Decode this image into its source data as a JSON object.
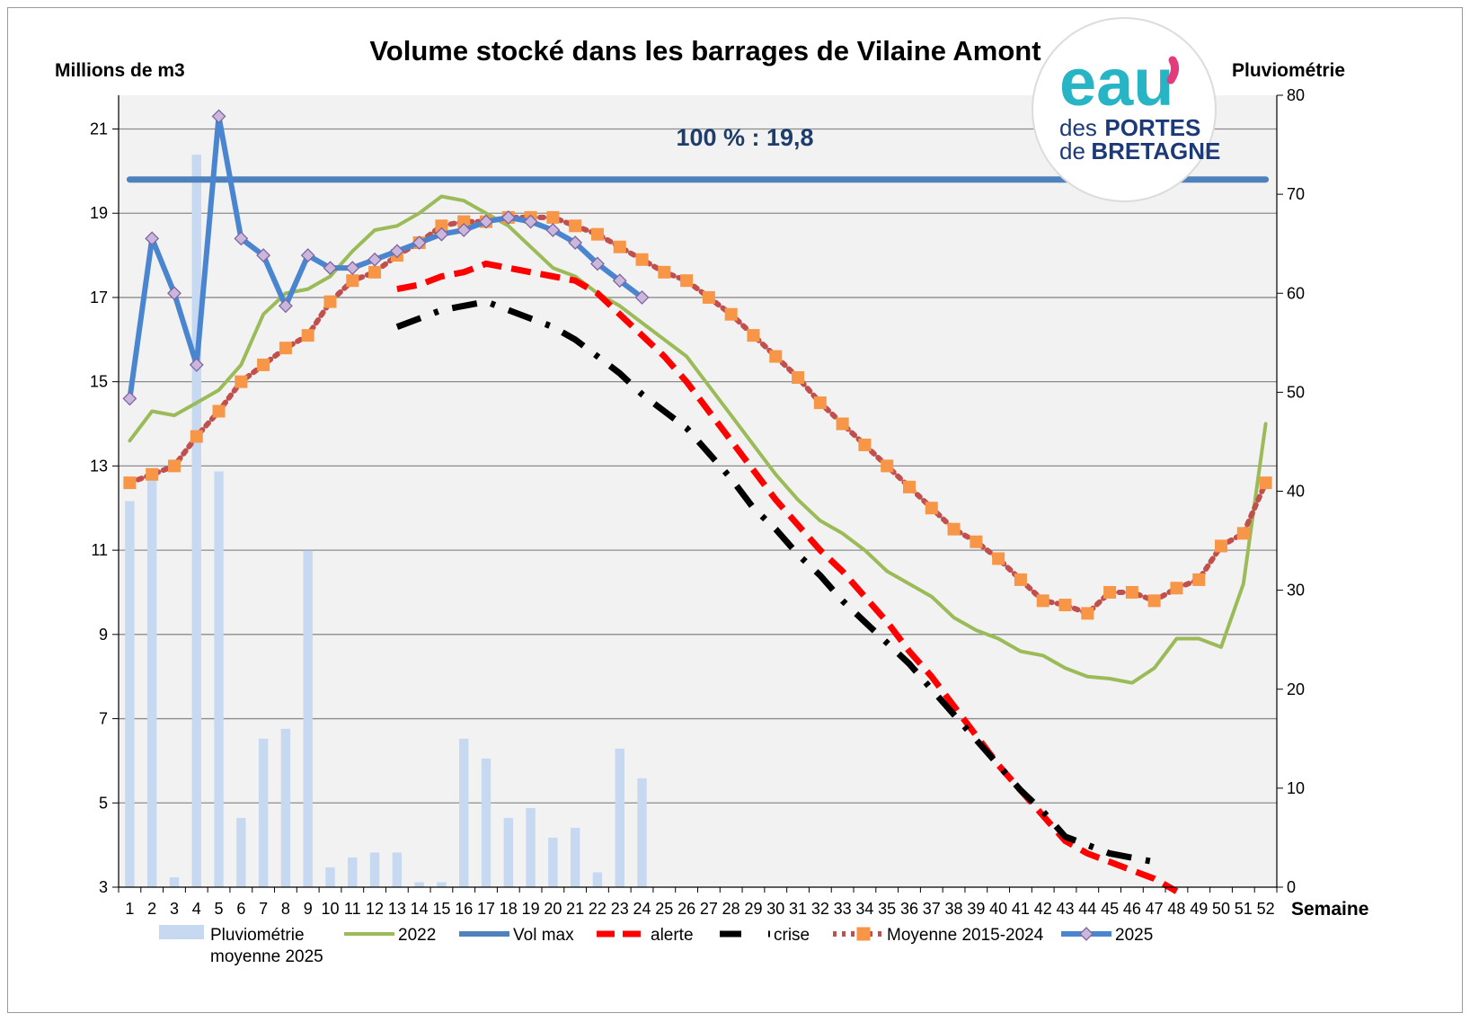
{
  "chart_data": {
    "type": "line",
    "title": "Volume stocké dans les barrages de Vilaine Amont",
    "ylabel": "Millions de m3",
    "y2label": "Pluviométrie",
    "xlabel": "Semaine",
    "ylim": [
      3,
      21.8
    ],
    "y2lim": [
      0,
      80
    ],
    "yticks": [
      3,
      5,
      7,
      9,
      11,
      13,
      15,
      17,
      19,
      21
    ],
    "y2ticks": [
      0,
      10,
      20,
      30,
      40,
      50,
      60,
      70,
      80
    ],
    "x": [
      1,
      2,
      3,
      4,
      5,
      6,
      7,
      8,
      9,
      10,
      11,
      12,
      13,
      14,
      15,
      16,
      17,
      18,
      19,
      20,
      21,
      22,
      23,
      24,
      25,
      26,
      27,
      28,
      29,
      30,
      31,
      32,
      33,
      34,
      35,
      36,
      37,
      38,
      39,
      40,
      41,
      42,
      43,
      44,
      45,
      46,
      47,
      48,
      49,
      50,
      51,
      52
    ],
    "annotation": "100 % : 19,8",
    "grid": true,
    "legend_position": "bottom",
    "series": [
      {
        "name": "Pluviométrie moyenne 2025",
        "kind": "bar",
        "axis": "right",
        "color": "#c6d9f1",
        "values": [
          39,
          42,
          1,
          74,
          42,
          7,
          15,
          16,
          34,
          2,
          3,
          3.5,
          3.5,
          0.5,
          0.5,
          15,
          13,
          7,
          8,
          5,
          6,
          1.5,
          14,
          11,
          null,
          null,
          null,
          null,
          null,
          null,
          null,
          null,
          null,
          null,
          null,
          null,
          null,
          null,
          null,
          null,
          null,
          null,
          null,
          null,
          null,
          null,
          null,
          null,
          null,
          null,
          null,
          null
        ]
      },
      {
        "name": "2022",
        "kind": "line",
        "color": "#9bbb59",
        "values": [
          13.6,
          14.3,
          14.2,
          14.5,
          14.8,
          15.4,
          16.6,
          17.1,
          17.2,
          17.5,
          18.1,
          18.6,
          18.7,
          19.0,
          19.4,
          19.3,
          19.0,
          18.7,
          18.2,
          17.7,
          17.5,
          17.1,
          16.8,
          16.4,
          16.0,
          15.6,
          14.9,
          14.2,
          13.5,
          12.8,
          12.2,
          11.7,
          11.4,
          11.0,
          10.5,
          10.2,
          9.9,
          9.4,
          9.1,
          8.9,
          8.6,
          8.5,
          8.2,
          8.0,
          7.95,
          7.85,
          8.2,
          8.9,
          8.9,
          8.7,
          10.2,
          14.0
        ]
      },
      {
        "name": "Vol max",
        "kind": "line",
        "color": "#4f81bd",
        "values": [
          19.8,
          19.8,
          19.8,
          19.8,
          19.8,
          19.8,
          19.8,
          19.8,
          19.8,
          19.8,
          19.8,
          19.8,
          19.8,
          19.8,
          19.8,
          19.8,
          19.8,
          19.8,
          19.8,
          19.8,
          19.8,
          19.8,
          19.8,
          19.8,
          19.8,
          19.8,
          19.8,
          19.8,
          19.8,
          19.8,
          19.8,
          19.8,
          19.8,
          19.8,
          19.8,
          19.8,
          19.8,
          19.8,
          19.8,
          19.8,
          19.8,
          19.8,
          19.8,
          19.8,
          19.8,
          19.8,
          19.8,
          19.8,
          19.8,
          19.8,
          19.8,
          19.8
        ]
      },
      {
        "name": "alerte",
        "kind": "dashed",
        "color": "#ff0000",
        "values": [
          null,
          null,
          null,
          null,
          null,
          null,
          null,
          null,
          null,
          null,
          null,
          null,
          17.2,
          17.3,
          17.5,
          17.6,
          17.8,
          17.7,
          17.6,
          17.5,
          17.4,
          17.1,
          16.6,
          16.1,
          15.6,
          15.0,
          14.3,
          13.6,
          12.9,
          12.2,
          11.6,
          11.0,
          10.5,
          9.9,
          9.3,
          8.6,
          8.0,
          7.3,
          6.6,
          5.9,
          5.3,
          4.7,
          4.1,
          3.8,
          3.6,
          3.4,
          3.2,
          2.9,
          null,
          null,
          null,
          null
        ]
      },
      {
        "name": "crise",
        "kind": "dashdot",
        "color": "#000000",
        "values": [
          null,
          null,
          null,
          null,
          null,
          null,
          null,
          null,
          null,
          null,
          null,
          null,
          16.3,
          16.5,
          16.7,
          16.8,
          16.9,
          16.7,
          16.5,
          16.3,
          16.0,
          15.6,
          15.2,
          14.7,
          14.3,
          13.9,
          13.3,
          12.7,
          12.0,
          11.5,
          10.9,
          10.4,
          9.8,
          9.3,
          8.8,
          8.3,
          7.7,
          7.1,
          6.5,
          5.9,
          5.3,
          4.8,
          4.2,
          4.0,
          3.8,
          3.7,
          3.6,
          null,
          null,
          null,
          null,
          null
        ]
      },
      {
        "name": "Moyenne 2015-2024",
        "kind": "line-markers",
        "color": "#c0504d",
        "marker_color": "#f79646",
        "values": [
          12.6,
          12.8,
          13.0,
          13.7,
          14.3,
          15.0,
          15.4,
          15.8,
          16.1,
          16.9,
          17.4,
          17.6,
          18.0,
          18.3,
          18.7,
          18.8,
          18.8,
          18.9,
          18.9,
          18.9,
          18.7,
          18.5,
          18.2,
          17.9,
          17.6,
          17.4,
          17.0,
          16.6,
          16.1,
          15.6,
          15.1,
          14.5,
          14.0,
          13.5,
          13.0,
          12.5,
          12.0,
          11.5,
          11.2,
          10.8,
          10.3,
          9.8,
          9.7,
          9.5,
          10.0,
          10.0,
          9.8,
          10.1,
          10.3,
          11.1,
          11.4,
          12.6
        ]
      },
      {
        "name": "2025",
        "kind": "line-markers",
        "color": "#4a86d0",
        "marker_color": "#c9b8dc",
        "values": [
          14.6,
          18.4,
          17.1,
          15.4,
          21.3,
          18.4,
          18.0,
          16.8,
          18.0,
          17.7,
          17.7,
          17.9,
          18.1,
          18.3,
          18.5,
          18.6,
          18.8,
          18.9,
          18.8,
          18.6,
          18.3,
          17.8,
          17.4,
          17.0,
          null,
          null,
          null,
          null,
          null,
          null,
          null,
          null,
          null,
          null,
          null,
          null,
          null,
          null,
          null,
          null,
          null,
          null,
          null,
          null,
          null,
          null,
          null,
          null,
          null,
          null,
          null,
          null
        ]
      }
    ]
  },
  "logo": {
    "eau": "eau",
    "line1_small": "des",
    "line1_big": "PORTES",
    "line2_small": "de",
    "line2_big": "BRETAGNE",
    "color_primary": "#1d3a78",
    "color_accent": "#27b5c6",
    "color_pink": "#e33b7c"
  },
  "legend": [
    {
      "label": "Pluviométrie",
      "label2": "moyenne 2025"
    },
    {
      "label": "2022"
    },
    {
      "label": "Vol max"
    },
    {
      "label": "alerte"
    },
    {
      "label": "crise"
    },
    {
      "label": "Moyenne 2015-2024"
    },
    {
      "label": "2025"
    }
  ]
}
